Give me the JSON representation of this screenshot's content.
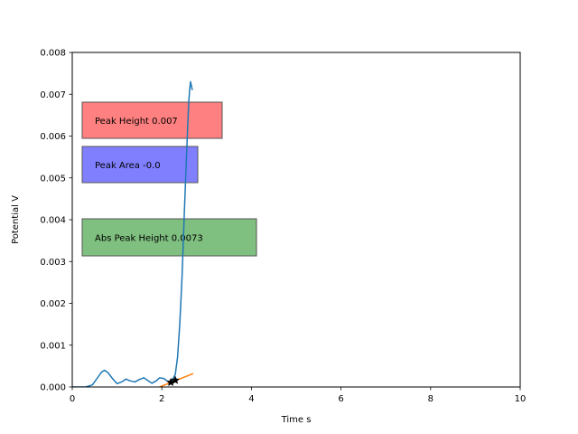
{
  "chart_data": {
    "type": "line",
    "xlabel": "Time s",
    "ylabel": "Potential V",
    "xlim": [
      0,
      10
    ],
    "ylim": [
      0,
      0.008
    ],
    "xticks": [
      "0",
      "2",
      "4",
      "6",
      "8",
      "10"
    ],
    "yticks": [
      "0.000",
      "0.001",
      "0.002",
      "0.003",
      "0.004",
      "0.005",
      "0.006",
      "0.007",
      "0.008"
    ],
    "grid": false,
    "series": [
      {
        "color": "#1f77b4",
        "x": [
          0.0,
          0.3,
          0.45,
          0.55,
          0.65,
          0.72,
          0.8,
          0.9,
          1.0,
          1.1,
          1.2,
          1.28,
          1.4,
          1.5,
          1.6,
          1.68,
          1.78,
          1.88,
          1.95,
          2.05,
          2.15,
          2.2,
          2.25,
          2.3,
          2.35,
          2.4,
          2.45,
          2.5,
          2.55,
          2.58,
          2.6,
          2.62,
          2.64,
          2.66,
          2.68
        ],
        "y": [
          0.0,
          0.0,
          5e-05,
          0.0002,
          0.00035,
          0.0004,
          0.00034,
          0.0002,
          8e-05,
          0.00012,
          0.00019,
          0.00015,
          0.00012,
          0.00018,
          0.00022,
          0.00016,
          9e-05,
          0.00015,
          0.00022,
          0.0002,
          0.00012,
          0.00014,
          0.0002,
          0.0003,
          0.0007,
          0.0015,
          0.0026,
          0.0041,
          0.0055,
          0.0063,
          0.0068,
          0.0071,
          0.0073,
          0.0072,
          0.0071
        ]
      },
      {
        "color": "#ff7f0e",
        "x": [
          1.95,
          2.7
        ],
        "y": [
          0.0,
          0.00032
        ]
      }
    ],
    "markers": [
      {
        "x": 2.2,
        "y": 0.00011,
        "color": "#000000"
      },
      {
        "x": 2.3,
        "y": 0.00016,
        "color": "#000000"
      }
    ],
    "annotations": [
      {
        "text": "Peak Height 0.007",
        "color": "#ff8080"
      },
      {
        "text": "Peak Area -0.0",
        "color": "#8080ff"
      },
      {
        "text": "Abs Peak Height 0.0073",
        "color": "#7fbf7f"
      }
    ]
  }
}
